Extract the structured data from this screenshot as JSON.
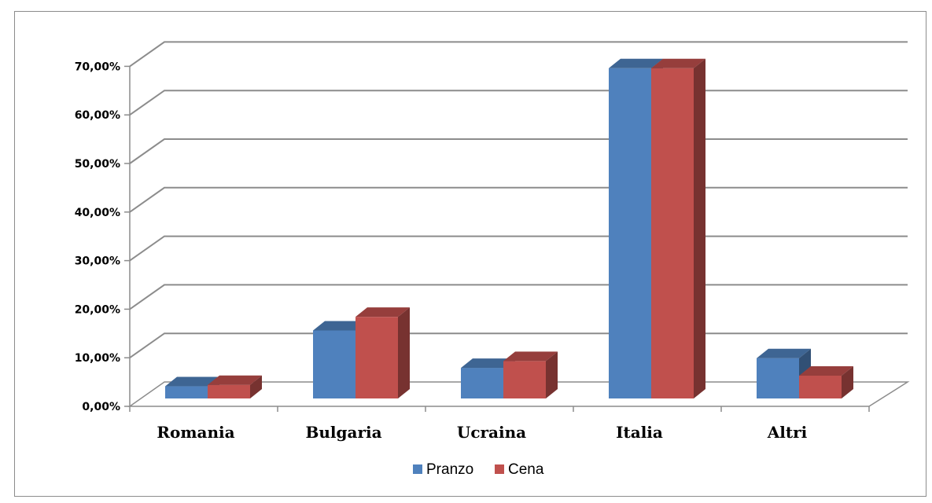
{
  "chart_data": {
    "type": "bar",
    "style": "3d-clustered-column",
    "categories": [
      "Romania",
      "Bulgaria",
      "Ucraina",
      "Italia",
      "Altri"
    ],
    "series": [
      {
        "name": "Pranzo",
        "color": "#4F81BD",
        "values": [
          0.025,
          0.14,
          0.063,
          0.68,
          0.083
        ]
      },
      {
        "name": "Cena",
        "color": "#C0504D",
        "values": [
          0.028,
          0.168,
          0.077,
          0.68,
          0.047
        ]
      }
    ],
    "y_ticks": [
      "0,00%",
      "10,00%",
      "20,00%",
      "30,00%",
      "40,00%",
      "50,00%",
      "60,00%",
      "70,00%"
    ],
    "ylim": [
      0,
      0.7
    ],
    "grid": true,
    "legend_position": "bottom"
  }
}
